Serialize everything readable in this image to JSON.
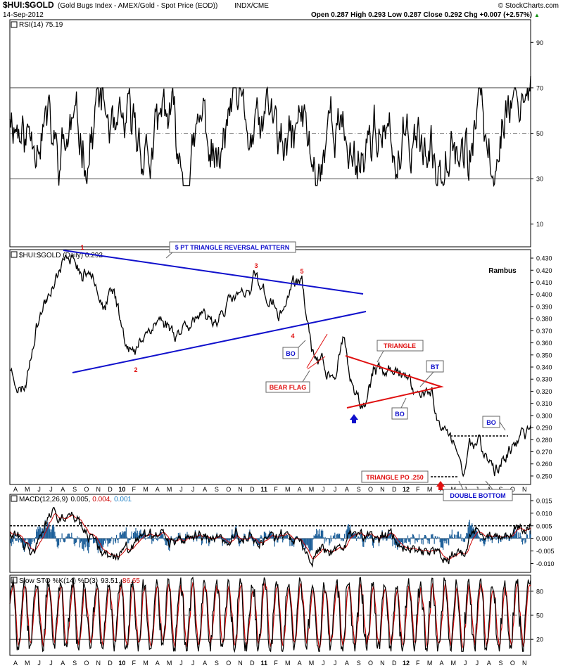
{
  "header": {
    "symbol": "$HUI:$GOLD",
    "description": "(Gold Bugs Index - AMEX/Gold - Spot Price (EOD))",
    "exchange": "INDX/CME",
    "date": "14-Sep-2012",
    "watermark": "© StockCharts.com",
    "ohlc_text": "Open 0.287  High 0.293  Low 0.287  Close 0.292  Chg +0.007 (+2.57%)",
    "up_arrow": "▲"
  },
  "chart_data": [
    {
      "type": "line",
      "panel": "rsi",
      "legend": "RSI(14) 75.19",
      "ticks": [
        "90",
        "70",
        "50",
        "30",
        "10"
      ],
      "tick_values": [
        90,
        70,
        50,
        30,
        10
      ],
      "ylim": [
        0,
        100
      ],
      "reference_lines": [
        70,
        50,
        30
      ],
      "last": 75.19,
      "keypoints": [
        [
          0,
          62
        ],
        [
          0.03,
          50
        ],
        [
          0.07,
          60
        ],
        [
          0.09,
          42
        ],
        [
          0.12,
          57
        ],
        [
          0.15,
          45
        ],
        [
          0.17,
          68
        ],
        [
          0.2,
          45
        ],
        [
          0.24,
          52
        ],
        [
          0.27,
          38
        ],
        [
          0.3,
          58
        ],
        [
          0.34,
          33
        ],
        [
          0.37,
          60
        ],
        [
          0.4,
          30
        ],
        [
          0.43,
          62
        ],
        [
          0.46,
          40
        ],
        [
          0.5,
          57
        ],
        [
          0.53,
          35
        ],
        [
          0.56,
          58
        ],
        [
          0.59,
          28
        ],
        [
          0.62,
          60
        ],
        [
          0.66,
          36
        ],
        [
          0.7,
          55
        ],
        [
          0.74,
          34
        ],
        [
          0.78,
          58
        ],
        [
          0.82,
          32
        ],
        [
          0.85,
          55
        ],
        [
          0.88,
          36
        ],
        [
          0.9,
          60
        ],
        [
          0.93,
          30
        ],
        [
          0.95,
          62
        ],
        [
          0.98,
          68
        ],
        [
          1,
          75
        ]
      ],
      "noise": 9,
      "lo": 27,
      "hi": 70,
      "seed": 11,
      "color": "#000000"
    },
    {
      "type": "line",
      "panel": "price",
      "legend": "$HUI:$GOLD (Daily) 0.292",
      "ticks": [
        "0.430",
        "0.420",
        "0.410",
        "0.400",
        "0.390",
        "0.380",
        "0.370",
        "0.360",
        "0.350",
        "0.340",
        "0.330",
        "0.320",
        "0.310",
        "0.300",
        "0.290",
        "0.280",
        "0.270",
        "0.260",
        "0.250"
      ],
      "tick_values": [
        0.43,
        0.42,
        0.41,
        0.4,
        0.39,
        0.38,
        0.37,
        0.36,
        0.35,
        0.34,
        0.33,
        0.32,
        0.31,
        0.3,
        0.29,
        0.28,
        0.27,
        0.26,
        0.25
      ],
      "ylim": [
        0.243,
        0.437
      ],
      "last": 0.292,
      "keypoints": [
        [
          0,
          0.34
        ],
        [
          0.02,
          0.32
        ],
        [
          0.03,
          0.325
        ],
        [
          0.05,
          0.375
        ],
        [
          0.08,
          0.405
        ],
        [
          0.1,
          0.42
        ],
        [
          0.12,
          0.432
        ],
        [
          0.14,
          0.412
        ],
        [
          0.16,
          0.42
        ],
        [
          0.18,
          0.39
        ],
        [
          0.2,
          0.405
        ],
        [
          0.22,
          0.368
        ],
        [
          0.24,
          0.348
        ],
        [
          0.26,
          0.372
        ],
        [
          0.29,
          0.378
        ],
        [
          0.32,
          0.37
        ],
        [
          0.35,
          0.382
        ],
        [
          0.38,
          0.376
        ],
        [
          0.41,
          0.39
        ],
        [
          0.44,
          0.4
        ],
        [
          0.46,
          0.395
        ],
        [
          0.47,
          0.418
        ],
        [
          0.49,
          0.4
        ],
        [
          0.52,
          0.38
        ],
        [
          0.54,
          0.405
        ],
        [
          0.56,
          0.412
        ],
        [
          0.57,
          0.385
        ],
        [
          0.58,
          0.355
        ],
        [
          0.6,
          0.345
        ],
        [
          0.62,
          0.33
        ],
        [
          0.64,
          0.36
        ],
        [
          0.66,
          0.315
        ],
        [
          0.68,
          0.305
        ],
        [
          0.7,
          0.338
        ],
        [
          0.72,
          0.33
        ],
        [
          0.74,
          0.342
        ],
        [
          0.77,
          0.325
        ],
        [
          0.79,
          0.318
        ],
        [
          0.81,
          0.318
        ],
        [
          0.82,
          0.298
        ],
        [
          0.84,
          0.285
        ],
        [
          0.86,
          0.27
        ],
        [
          0.87,
          0.245
        ],
        [
          0.88,
          0.275
        ],
        [
          0.9,
          0.28
        ],
        [
          0.92,
          0.262
        ],
        [
          0.93,
          0.252
        ],
        [
          0.95,
          0.265
        ],
        [
          0.97,
          0.276
        ],
        [
          1,
          0.292
        ]
      ],
      "noise": 0.0045,
      "lo": 0.245,
      "hi": 0.432,
      "seed": 23,
      "color": "#000000"
    },
    {
      "type": "line",
      "panel": "macd",
      "legend_name": "MACD(12,26,9)",
      "legend_values": [
        "0.005,",
        "0.004,",
        "0.001"
      ],
      "legend_colors": [
        "#000000",
        "#cc0000",
        "#1a7fc4"
      ],
      "ticks": [
        "0.015",
        "0.010",
        "0.005",
        "0.000",
        "-0.005",
        "-0.010"
      ],
      "tick_values": [
        0.015,
        0.01,
        0.005,
        0.0,
        -0.005,
        -0.01
      ],
      "ylim": [
        -0.0135,
        0.0175
      ],
      "last": 0.005,
      "signal_last": 0.004,
      "histogram_last": 0.001,
      "dashed_level": 0.005,
      "keypoints": [
        [
          0,
          0.004
        ],
        [
          0.04,
          -0.006
        ],
        [
          0.08,
          0.008
        ],
        [
          0.12,
          0.011
        ],
        [
          0.15,
          0.0
        ],
        [
          0.19,
          -0.007
        ],
        [
          0.23,
          -0.003
        ],
        [
          0.28,
          0.002
        ],
        [
          0.32,
          -0.002
        ],
        [
          0.36,
          0.002
        ],
        [
          0.4,
          -0.001
        ],
        [
          0.44,
          0.003
        ],
        [
          0.48,
          0.0
        ],
        [
          0.52,
          0.003
        ],
        [
          0.55,
          -0.001
        ],
        [
          0.58,
          -0.008
        ],
        [
          0.6,
          -0.002
        ],
        [
          0.63,
          -0.006
        ],
        [
          0.66,
          0.002
        ],
        [
          0.7,
          0.0
        ],
        [
          0.73,
          0.002
        ],
        [
          0.76,
          -0.002
        ],
        [
          0.8,
          -0.004
        ],
        [
          0.84,
          -0.006
        ],
        [
          0.87,
          -0.004
        ],
        [
          0.9,
          0.003
        ],
        [
          0.93,
          -0.003
        ],
        [
          0.96,
          0.001
        ],
        [
          1,
          0.005
        ]
      ],
      "noise": 0.0018,
      "lo": -0.0115,
      "hi": 0.013,
      "seed": 31,
      "color": "#000000",
      "signal_color": "#cc0000",
      "hist_color": "#1d5f99"
    },
    {
      "type": "line",
      "panel": "sto",
      "legend_name": "Slow STO %K(14) %D(3)",
      "legend_values": [
        "93.51,",
        "86.65"
      ],
      "legend_colors": [
        "#000000",
        "#cc0000"
      ],
      "ticks": [
        "80",
        "50",
        "20"
      ],
      "tick_values": [
        80,
        50,
        20
      ],
      "ylim": [
        0,
        100
      ],
      "reference_lines": [
        80,
        50,
        20
      ],
      "last": 93.51,
      "signal_last": 86.65,
      "keypoints": [
        [
          0,
          80
        ],
        [
          1,
          93
        ]
      ],
      "noise": 0,
      "osc": true,
      "lo": 5,
      "hi": 97,
      "seed": 41,
      "color": "#000000",
      "signal_color": "#cc0000"
    }
  ],
  "x_axis": {
    "labels_top": [
      "A",
      "M",
      "J",
      "J",
      "A",
      "S",
      "O",
      "N",
      "D",
      "10",
      "F",
      "M",
      "A",
      "M",
      "J",
      "J",
      "A",
      "S",
      "O",
      "N",
      "D",
      "11",
      "F",
      "M",
      "A",
      "M",
      "J",
      "J",
      "A",
      "S",
      "O",
      "N",
      "D",
      "12",
      "F",
      "M",
      "A",
      "M",
      "J",
      "J",
      "A",
      "S",
      "O",
      "N"
    ],
    "labels_bottom": [
      "A",
      "M",
      "J",
      "J",
      "A",
      "S",
      "O",
      "N",
      "D",
      "10",
      "F",
      "M",
      "A",
      "M",
      "J",
      "J",
      "A",
      "S",
      "O",
      "N",
      "D",
      "11",
      "F",
      "M",
      "A",
      "M",
      "J",
      "J",
      "A",
      "S",
      "O",
      "N",
      "D",
      "12",
      "F",
      "M",
      "A",
      "M",
      "J",
      "J",
      "A",
      "S",
      "O",
      "N"
    ],
    "bold_labels": [
      "10",
      "11",
      "12"
    ]
  },
  "annotations": {
    "pattern_title": "5 PT TRIANGLE REVERSAL PATTERN",
    "author": "Rambus",
    "point_1": "1",
    "point_2": "2",
    "point_3": "3",
    "point_4": "4",
    "point_5": "5",
    "bo_1": "BO",
    "bear_flag": "BEAR FLAG",
    "triangle": "TRIANGLE",
    "bt": "BT",
    "bo_2": "BO",
    "bo_3": "BO",
    "triangle_po": "TRIANGLE PO .250",
    "double_bottom": "DOUBLE BOTTOM"
  },
  "colors": {
    "pattern_blue": "#1010cc",
    "annotation_red": "#e01010",
    "grid_gray": "#b0b0b0"
  }
}
